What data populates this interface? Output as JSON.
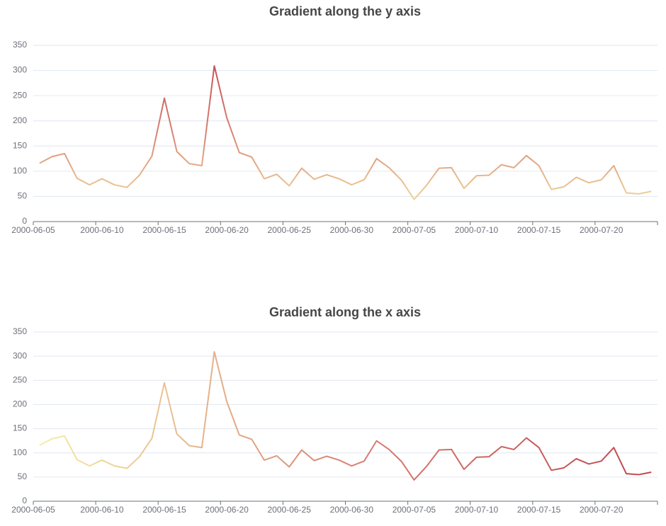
{
  "chart_data": [
    {
      "type": "line",
      "title": "Gradient along the y axis",
      "gradient": {
        "direction": "y",
        "colors": [
          "#f6efa6",
          "#d88273",
          "#bf444c"
        ]
      },
      "categories": [
        "2000-06-05",
        null,
        null,
        null,
        null,
        "2000-06-10",
        null,
        null,
        null,
        null,
        "2000-06-15",
        null,
        null,
        null,
        null,
        "2000-06-20",
        null,
        null,
        null,
        null,
        "2000-06-25",
        null,
        null,
        null,
        null,
        "2000-06-30",
        null,
        null,
        null,
        null,
        "2000-07-05",
        null,
        null,
        null,
        null,
        "2000-07-10",
        null,
        null,
        null,
        null,
        "2000-07-15",
        null,
        null,
        null,
        null,
        "2000-07-20",
        null,
        null,
        null,
        null
      ],
      "values": [
        116,
        129,
        135,
        86,
        73,
        85,
        73,
        68,
        92,
        130,
        245,
        139,
        115,
        111,
        309,
        206,
        137,
        128,
        85,
        94,
        71,
        106,
        84,
        93,
        85,
        73,
        83,
        125,
        107,
        82,
        44,
        72,
        106,
        107,
        66,
        91,
        92,
        113,
        107,
        131,
        111,
        64,
        69,
        88,
        77,
        83,
        111,
        57,
        55,
        60
      ],
      "ylim": [
        0,
        350
      ],
      "yticks": [
        0,
        50,
        100,
        150,
        200,
        250,
        300,
        350
      ],
      "grid": true
    },
    {
      "type": "line",
      "title": "Gradient along the x axis",
      "gradient": {
        "direction": "x",
        "colors": [
          "#f6efa6",
          "#d88273",
          "#bf444c"
        ]
      },
      "categories": [
        "2000-06-05",
        null,
        null,
        null,
        null,
        "2000-06-10",
        null,
        null,
        null,
        null,
        "2000-06-15",
        null,
        null,
        null,
        null,
        "2000-06-20",
        null,
        null,
        null,
        null,
        "2000-06-25",
        null,
        null,
        null,
        null,
        "2000-06-30",
        null,
        null,
        null,
        null,
        "2000-07-05",
        null,
        null,
        null,
        null,
        "2000-07-10",
        null,
        null,
        null,
        null,
        "2000-07-15",
        null,
        null,
        null,
        null,
        "2000-07-20",
        null,
        null,
        null,
        null
      ],
      "values": [
        116,
        129,
        135,
        86,
        73,
        85,
        73,
        68,
        92,
        130,
        245,
        139,
        115,
        111,
        309,
        206,
        137,
        128,
        85,
        94,
        71,
        106,
        84,
        93,
        85,
        73,
        83,
        125,
        107,
        82,
        44,
        72,
        106,
        107,
        66,
        91,
        92,
        113,
        107,
        131,
        111,
        64,
        69,
        88,
        77,
        83,
        111,
        57,
        55,
        60
      ],
      "ylim": [
        0,
        350
      ],
      "yticks": [
        0,
        50,
        100,
        150,
        200,
        250,
        300,
        350
      ],
      "grid": true
    }
  ]
}
